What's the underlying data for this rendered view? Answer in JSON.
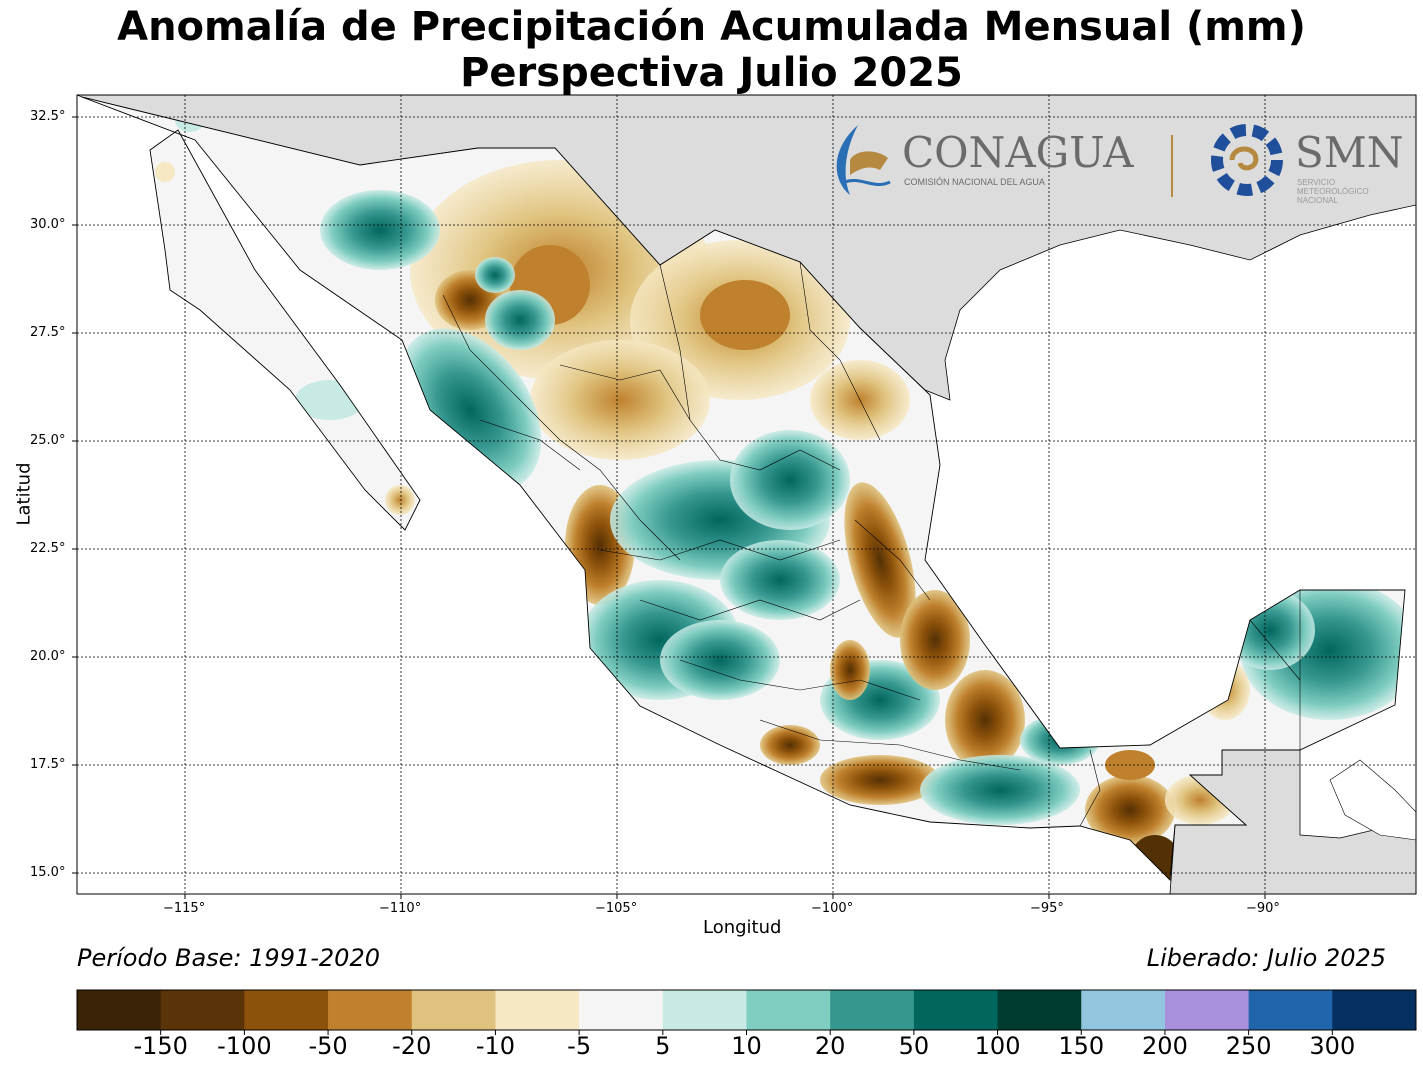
{
  "title_line1": "Anomalía de Precipitación Acumulada Mensual (mm)",
  "title_line2": "Perspectiva Julio 2025",
  "xlabel": "Longitud",
  "ylabel": "Latitud",
  "lat_ticks": [
    "32.5°",
    "30.0°",
    "27.5°",
    "25.0°",
    "22.5°",
    "20.0°",
    "17.5°",
    "15.0°"
  ],
  "lon_ticks": [
    "−115°",
    "−110°",
    "−105°",
    "−100°",
    "−95°",
    "−90°"
  ],
  "base_period": "Período Base: 1991-2020",
  "released": "Liberado: Julio 2025",
  "logos": {
    "conagua_name": "CONAGUA",
    "conagua_sub": "COMISIÓN NACIONAL DEL AGUA",
    "smn_name": "SMN",
    "smn_sub": [
      "SERVICIO",
      "METEOROLÓGICO",
      "NACIONAL"
    ]
  },
  "colorbar": {
    "colors": [
      "#3a2306",
      "#5b3308",
      "#8c510a",
      "#bf812d",
      "#dfc27d",
      "#f6e8c3",
      "#f5f5f5",
      "#c7eae5",
      "#80cdc1",
      "#35978f",
      "#01665e",
      "#003c30",
      "#92c5de",
      "#a990dd",
      "#2166ac",
      "#053061"
    ],
    "labels": [
      "-150",
      "-100",
      "-50",
      "-20",
      "-10",
      "-5",
      "5",
      "10",
      "20",
      "50",
      "100",
      "150",
      "200",
      "250",
      "300"
    ]
  }
}
